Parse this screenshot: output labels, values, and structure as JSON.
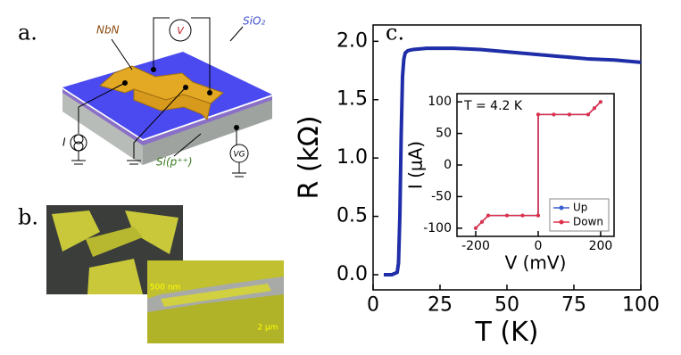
{
  "panels": {
    "a": {
      "label": "a.",
      "nbn": "NbN",
      "voltmeter": "V",
      "oxide": "SiO₂",
      "current": "I",
      "substrate": "Si(p⁺⁺)",
      "gate": "VG"
    },
    "b": {
      "label": "b.",
      "scale_small": "500 nm",
      "scale_large": "2 μm"
    },
    "c": {
      "label": "c."
    }
  },
  "chart_data": [
    {
      "type": "line",
      "x_label": "T (K)",
      "y_label": "R (kΩ)",
      "xlim": [
        0,
        100
      ],
      "ylim": [
        -0.13,
        2.14
      ],
      "xticks": [
        0,
        25,
        50,
        75,
        100
      ],
      "yticks": [
        {
          "value": 0,
          "label": "0.0"
        },
        {
          "value": 0.5,
          "label": "0.5"
        },
        {
          "value": 1,
          "label": "1.0"
        },
        {
          "value": 1.5,
          "label": "1.5"
        },
        {
          "value": 2,
          "label": "2.0"
        }
      ],
      "x": [
        4,
        5,
        6,
        7,
        8,
        9,
        9.5,
        10,
        10.5,
        11,
        11.5,
        12,
        13,
        15,
        20,
        25,
        30,
        40,
        50,
        60,
        70,
        80,
        90,
        100
      ],
      "series": [
        {
          "color": "#1f2ea8",
          "values": [
            0,
            0,
            0,
            0,
            0.01,
            0.02,
            0.1,
            0.5,
            1.2,
            1.7,
            1.85,
            1.9,
            1.92,
            1.93,
            1.94,
            1.94,
            1.94,
            1.93,
            1.91,
            1.89,
            1.87,
            1.85,
            1.84,
            1.82
          ]
        }
      ]
    },
    {
      "type": "line",
      "x_label": "V (mV)",
      "y_label": "I (μA)",
      "annotation": "T = 4.2 K",
      "xlim": [
        -260,
        243
      ],
      "ylim": [
        -113,
        113
      ],
      "xticks": [
        -200,
        0,
        200
      ],
      "yticks": [
        100,
        50,
        0,
        -50,
        -100
      ],
      "legend": "lower right",
      "x": [
        -200,
        -180,
        -160,
        -100,
        -50,
        0,
        0,
        50,
        100,
        160,
        180,
        200
      ],
      "series": [
        {
          "name": "Up",
          "color": "#3a5fd0",
          "values": [
            -100,
            -90,
            -80,
            -80,
            -80,
            -80,
            80,
            80,
            80,
            80,
            90,
            100
          ]
        },
        {
          "name": "Down",
          "color": "#e0304a",
          "values": [
            -100,
            -90,
            -80,
            -80,
            -80,
            -80,
            80,
            80,
            80,
            80,
            90,
            100
          ]
        }
      ]
    }
  ]
}
